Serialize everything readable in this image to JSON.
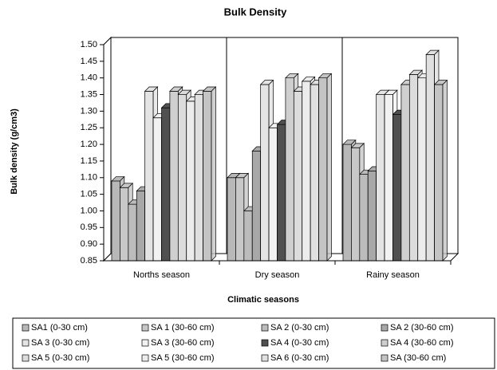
{
  "chart_data": {
    "type": "bar3d",
    "title": "Bulk Density",
    "x_label": "Climatic seasons",
    "y_label": "Bulk density (g/cm3)",
    "categories": [
      "Norths season",
      "Dry season",
      "Rainy season"
    ],
    "ylim": [
      0.85,
      1.5
    ],
    "yticks": [
      0.85,
      {
        "value": 0.9,
        "label": "0.90"
      },
      0.95,
      {
        "value": 1.0,
        "label": "1.00"
      },
      1.05,
      {
        "value": 1.1,
        "label": "1.10"
      },
      1.15,
      {
        "value": 1.2,
        "label": "1.20"
      },
      1.25,
      {
        "value": 1.3,
        "label": "1.30"
      },
      1.35,
      {
        "value": 1.4,
        "label": "1.40"
      },
      1.45,
      {
        "value": 1.5,
        "label": "1.50"
      }
    ],
    "grid": false,
    "series": [
      {
        "name": "SA1 (0-30 cm)",
        "color": "#b8b8b8",
        "values": [
          1.09,
          1.1,
          1.2
        ]
      },
      {
        "name": "SA 1 (30-60 cm)",
        "color": "#c8c8c8",
        "values": [
          1.07,
          1.1,
          1.19
        ]
      },
      {
        "name": "SA 2 (0-30 cm)",
        "color": "#bcbcbc",
        "values": [
          1.02,
          1.0,
          1.11
        ]
      },
      {
        "name": "SA 2 (30-60 cm)",
        "color": "#a8a8a8",
        "values": [
          1.06,
          1.18,
          1.12
        ]
      },
      {
        "name": "SA 3 (0-30 cm)",
        "color": "#e4e4e4",
        "values": [
          1.36,
          1.38,
          1.35
        ]
      },
      {
        "name": "SA 3 (30-60 cm)",
        "color": "#f2f2f2",
        "values": [
          1.28,
          1.25,
          1.35
        ]
      },
      {
        "name": "SA 4 (0-30 cm)",
        "color": "#505050",
        "values": [
          1.31,
          1.26,
          1.29
        ]
      },
      {
        "name": "SA 4 (30-60 cm)",
        "color": "#cfcfcf",
        "values": [
          1.36,
          1.4,
          1.38
        ]
      },
      {
        "name": "SA 5 (0-30 cm)",
        "color": "#dcdcdc",
        "values": [
          1.35,
          1.36,
          1.41
        ]
      },
      {
        "name": "SA 5 (30-60 cm)",
        "color": "#ececec",
        "values": [
          1.33,
          1.39,
          1.4
        ]
      },
      {
        "name": "SA 6 (0-30 cm)",
        "color": "#e0e0e0",
        "values": [
          1.35,
          1.38,
          1.47
        ]
      },
      {
        "name": "SA (30-60 cm)",
        "color": "#c4c4c4",
        "values": [
          1.36,
          1.4,
          1.38
        ]
      }
    ]
  }
}
